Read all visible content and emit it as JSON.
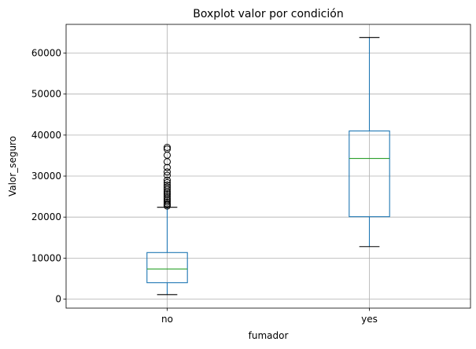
{
  "chart_data": {
    "type": "box",
    "title": "Boxplot valor por condición",
    "xlabel": "fumador",
    "ylabel": "Valor_seguro",
    "categories": [
      "no",
      "yes"
    ],
    "y_ticks": [
      0,
      10000,
      20000,
      30000,
      40000,
      50000,
      60000
    ],
    "ylim": [
      -2200,
      67000
    ],
    "grid": true,
    "boxes": [
      {
        "category": "no",
        "whisker_low": 1100,
        "q1": 4000,
        "median": 7350,
        "q3": 11350,
        "whisker_high": 22400,
        "outliers": [
          22700,
          23000,
          23300,
          23700,
          24100,
          24500,
          25000,
          25500,
          25900,
          26300,
          26800,
          27300,
          27800,
          28400,
          29000,
          30200,
          31000,
          32100,
          33500,
          35100,
          36600,
          37000
        ]
      },
      {
        "category": "yes",
        "whisker_low": 12800,
        "q1": 20100,
        "median": 34300,
        "q3": 41000,
        "whisker_high": 63800,
        "outliers": []
      }
    ],
    "colors": {
      "box": "#1f77b4",
      "median": "#2ca02c",
      "whisker": "#1f77b4",
      "cap": "#000000",
      "outlier": "#000000",
      "grid": "#b0b0b0"
    }
  }
}
